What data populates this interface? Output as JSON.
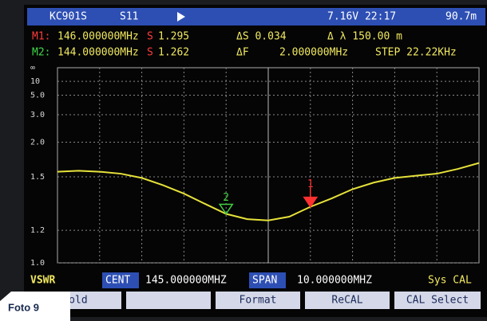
{
  "header": {
    "device": "KC901S",
    "mode": "S11",
    "status": "7.16V 22:17",
    "extra": "90.7m"
  },
  "readout": {
    "m1": {
      "label": "M1:",
      "freq": "146.000000MHz",
      "s_label": "S",
      "s_value": "1.295",
      "delta_s": "ΔS 0.034",
      "delta_lambda": "Δ λ 150.00 m"
    },
    "m2": {
      "label": "M2:",
      "freq": "144.000000MHz",
      "s_label": "S",
      "s_value": "1.262",
      "delta_f_label": "ΔF",
      "delta_f": "2.000000MHz",
      "step": "STEP 22.22KHz"
    }
  },
  "chart_data": {
    "type": "line",
    "scale": "vswr",
    "y_top_label": "∞",
    "x": [
      140,
      140.5,
      141,
      141.5,
      142,
      142.5,
      143,
      143.5,
      144,
      144.5,
      145,
      145.5,
      146,
      146.5,
      147,
      147.5,
      148,
      148.5,
      149,
      149.5,
      150
    ],
    "xlim": [
      140,
      150
    ],
    "series": [
      {
        "color": "#e6e23a",
        "values": [
          1.55,
          1.56,
          1.55,
          1.53,
          1.49,
          1.43,
          1.37,
          1.31,
          1.262,
          1.24,
          1.235,
          1.25,
          1.295,
          1.34,
          1.4,
          1.45,
          1.49,
          1.51,
          1.53,
          1.58,
          1.65
        ]
      }
    ],
    "yticks": [
      {
        "value": 10,
        "label": "10"
      },
      {
        "value": 5,
        "label": "5.0"
      },
      {
        "value": 3,
        "label": "3.0"
      },
      {
        "value": 2,
        "label": "2.0"
      },
      1.5,
      1.2,
      {
        "value": 1,
        "label": "1.0"
      }
    ],
    "grid": true,
    "markers": [
      {
        "label": "1",
        "x": 146,
        "value": 1.295,
        "color": "#ff3030"
      },
      {
        "label": "2",
        "x": 144,
        "value": 1.262,
        "color": "#40d040"
      }
    ]
  },
  "footer": {
    "format": "VSWR",
    "cent_label": "CENT",
    "cent": "145.000000MHZ",
    "span_label": "SPAN",
    "span": "10.000000MHZ",
    "cal": "Sys CAL"
  },
  "softkeys": [
    "Hold",
    "Format",
    "ReCAL",
    "CAL Select"
  ],
  "photo_label": "Foto 9"
}
